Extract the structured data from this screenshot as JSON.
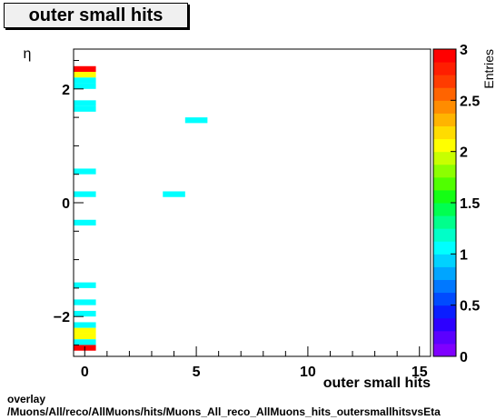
{
  "title": "outer small hits",
  "caption": {
    "line1": "overlay",
    "line2": "/Muons/All/reco/AllMuons/hits/Muons_All_reco_AllMuons_hits_outersmallhitsvsEta"
  },
  "chart_data": {
    "type": "heatmap",
    "xlabel": "outer small hits",
    "ylabel": "η",
    "xlim": [
      -0.5,
      15.5
    ],
    "ylim": [
      -2.7,
      2.7
    ],
    "x_ticks": [
      0,
      5,
      10,
      15
    ],
    "y_ticks": [
      -2,
      0,
      2
    ],
    "colorbar": {
      "label": "Entries",
      "range": [
        0,
        3
      ],
      "ticks": [
        "0",
        "0.5",
        "1",
        "1.5",
        "2",
        "2.5",
        "3"
      ]
    },
    "bin_width_x": 1,
    "bin_height_y": 0.1,
    "cells": [
      {
        "x": 0,
        "y": 2.35,
        "v": 3
      },
      {
        "x": 0,
        "y": 2.25,
        "v": 2
      },
      {
        "x": 0,
        "y": 2.15,
        "v": 1
      },
      {
        "x": 0,
        "y": 2.05,
        "v": 1
      },
      {
        "x": 0,
        "y": 1.75,
        "v": 1
      },
      {
        "x": 0,
        "y": 1.65,
        "v": 1
      },
      {
        "x": 0,
        "y": 0.55,
        "v": 1
      },
      {
        "x": 0,
        "y": 0.15,
        "v": 1
      },
      {
        "x": 0,
        "y": -0.35,
        "v": 1
      },
      {
        "x": 0,
        "y": -1.45,
        "v": 1
      },
      {
        "x": 0,
        "y": -1.75,
        "v": 1
      },
      {
        "x": 0,
        "y": -1.95,
        "v": 1
      },
      {
        "x": 0,
        "y": -2.15,
        "v": 1
      },
      {
        "x": 0,
        "y": -2.25,
        "v": 2
      },
      {
        "x": 0,
        "y": -2.35,
        "v": 2
      },
      {
        "x": 0,
        "y": -2.45,
        "v": 1
      },
      {
        "x": 0,
        "y": -2.55,
        "v": 3
      },
      {
        "x": 4,
        "y": 0.15,
        "v": 1
      },
      {
        "x": 5,
        "y": 1.45,
        "v": 1
      }
    ]
  }
}
